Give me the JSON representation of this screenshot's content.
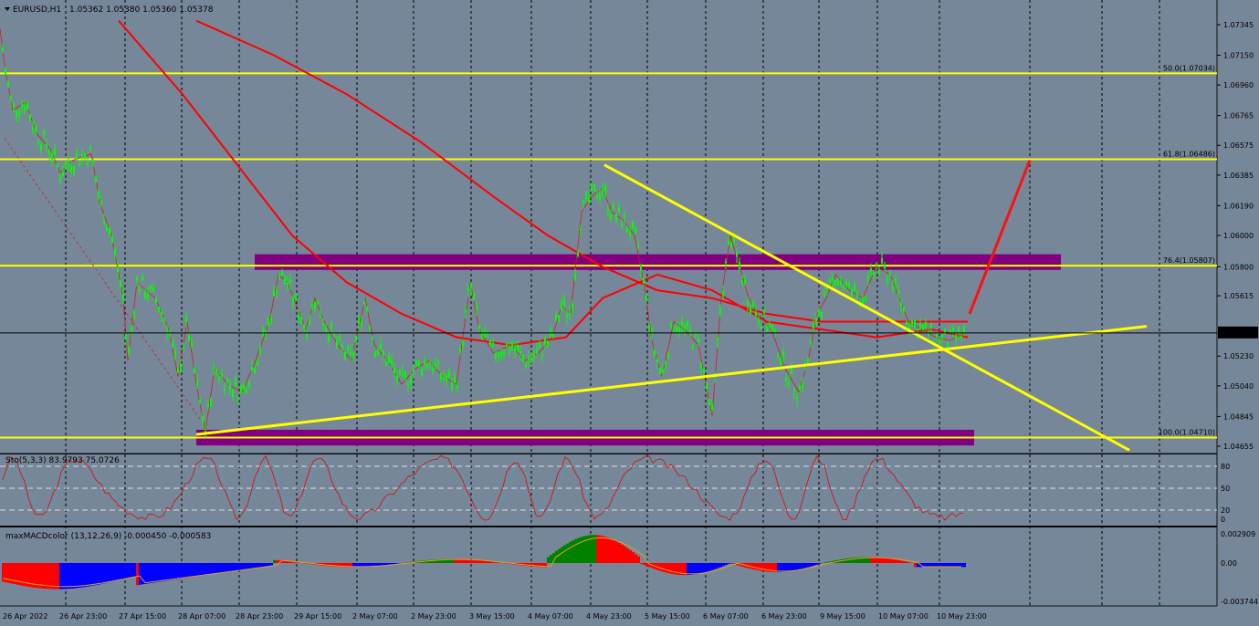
{
  "header": {
    "symbol": "EURUSD,H1",
    "ohlc": "1.05362 1.05380 1.05360 1.05378"
  },
  "price_axis": {
    "labels": [
      "1.07345",
      "1.07150",
      "1.06960",
      "1.06765",
      "1.06575",
      "1.06385",
      "1.06190",
      "1.06000",
      "1.05800",
      "1.05615",
      "1.05420",
      "1.05230",
      "1.05040",
      "1.04845",
      "1.04655"
    ],
    "values": [
      1.07345,
      1.0715,
      1.0696,
      1.06765,
      1.06575,
      1.06385,
      1.0619,
      1.06,
      1.058,
      1.05615,
      1.0542,
      1.0523,
      1.0504,
      1.04845,
      1.04655
    ],
    "current_price": "1.05378"
  },
  "time_axis": {
    "labels": [
      "26 Apr 2022",
      "26 Apr 23:00",
      "27 Apr 15:00",
      "28 Apr 07:00",
      "28 Apr 23:00",
      "29 Apr 15:00",
      "2 May 07:00",
      "2 May 23:00",
      "3 May 15:00",
      "4 May 07:00",
      "4 May 23:00",
      "5 May 15:00",
      "6 May 07:00",
      "6 May 23:00",
      "9 May 15:00",
      "10 May 07:00",
      "10 May 23:00"
    ]
  },
  "fibonacci": [
    {
      "label": "50.0(1.07034)",
      "price": 1.07034
    },
    {
      "label": "61.8(1.06486)",
      "price": 1.06486
    },
    {
      "label": "76.4(1.05807)",
      "price": 1.05807
    },
    {
      "label": "100.0(1.04710)",
      "price": 1.0471
    }
  ],
  "stochastic": {
    "title": "Sto(5,3,3) 83.9793 75.0726",
    "axis_labels": [
      "80",
      "50",
      "20",
      "0"
    ],
    "levels": [
      80,
      50,
      20,
      0
    ]
  },
  "macd": {
    "title": "maxMACDcolor (13,12,26,9) -0.000450 -0.000583",
    "axis_labels": [
      "0.002909",
      "0.00",
      "-0.003744"
    ],
    "values": [
      0.002909,
      0.0,
      -0.003744
    ]
  },
  "colors": {
    "background": "#768799",
    "candles": "#00ff00",
    "fib_lines": "#ffff00",
    "moving_averages": "#ff0000",
    "zones": "#800080",
    "trendlines": "#ffff00",
    "macd_up": "#008000",
    "macd_down": "#ff0000",
    "macd_strong": "#0000ff"
  },
  "chart_data": {
    "type": "candlestick",
    "series_ohlc_path": [
      [
        0,
        1.0732
      ],
      [
        6,
        1.0705
      ],
      [
        14,
        1.068
      ],
      [
        28,
        1.0685
      ],
      [
        40,
        1.0665
      ],
      [
        55,
        1.0655
      ],
      [
        66,
        1.064
      ],
      [
        80,
        1.0648
      ],
      [
        100,
        1.0652
      ],
      [
        110,
        1.062
      ],
      [
        122,
        1.06
      ],
      [
        135,
        1.056
      ],
      [
        140,
        1.052
      ],
      [
        150,
        1.057
      ],
      [
        170,
        1.056
      ],
      [
        185,
        1.054
      ],
      [
        195,
        1.051
      ],
      [
        205,
        1.0545
      ],
      [
        215,
        1.0505
      ],
      [
        225,
        1.0475
      ],
      [
        235,
        1.0515
      ],
      [
        250,
        1.0505
      ],
      [
        265,
        1.05
      ],
      [
        280,
        1.052
      ],
      [
        295,
        1.0545
      ],
      [
        305,
        1.0575
      ],
      [
        315,
        1.057
      ],
      [
        325,
        1.0555
      ],
      [
        335,
        1.054
      ],
      [
        345,
        1.056
      ],
      [
        355,
        1.0545
      ],
      [
        370,
        1.053
      ],
      [
        385,
        1.052
      ],
      [
        400,
        1.056
      ],
      [
        410,
        1.053
      ],
      [
        425,
        1.052
      ],
      [
        440,
        1.0505
      ],
      [
        455,
        1.0515
      ],
      [
        470,
        1.052
      ],
      [
        485,
        1.051
      ],
      [
        500,
        1.0505
      ],
      [
        515,
        1.057
      ],
      [
        525,
        1.054
      ],
      [
        540,
        1.0525
      ],
      [
        560,
        1.053
      ],
      [
        575,
        1.052
      ],
      [
        590,
        1.0525
      ],
      [
        605,
        1.0535
      ],
      [
        615,
        1.0555
      ],
      [
        625,
        1.055
      ],
      [
        637,
        1.0615
      ],
      [
        648,
        1.0625
      ],
      [
        660,
        1.063
      ],
      [
        670,
        1.0615
      ],
      [
        682,
        1.061
      ],
      [
        695,
        1.06
      ],
      [
        705,
        1.057
      ],
      [
        715,
        1.053
      ],
      [
        725,
        1.051
      ],
      [
        738,
        1.0545
      ],
      [
        750,
        1.054
      ],
      [
        765,
        1.053
      ],
      [
        780,
        1.0485
      ],
      [
        790,
        1.056
      ],
      [
        800,
        1.06
      ],
      [
        810,
        1.058
      ],
      [
        820,
        1.056
      ],
      [
        830,
        1.055
      ],
      [
        845,
        1.054
      ],
      [
        860,
        1.0515
      ],
      [
        875,
        1.05
      ],
      [
        885,
        1.052
      ],
      [
        895,
        1.055
      ],
      [
        905,
        1.056
      ],
      [
        915,
        1.0575
      ],
      [
        930,
        1.0565
      ],
      [
        945,
        1.056
      ],
      [
        960,
        1.058
      ],
      [
        975,
        1.0575
      ],
      [
        985,
        1.056
      ],
      [
        995,
        1.0545
      ],
      [
        1010,
        1.054
      ],
      [
        1025,
        1.0535
      ],
      [
        1040,
        1.0533
      ],
      [
        1058,
        1.0538
      ]
    ],
    "moving_averages": [
      {
        "points": [
          [
            130,
            1.0737
          ],
          [
            200,
            1.069
          ],
          [
            260,
            1.0645
          ],
          [
            320,
            1.06
          ],
          [
            380,
            1.057
          ],
          [
            440,
            1.055
          ],
          [
            500,
            1.0535
          ],
          [
            560,
            1.053
          ],
          [
            620,
            1.0535
          ],
          [
            660,
            1.056
          ],
          [
            720,
            1.0575
          ],
          [
            780,
            1.0565
          ],
          [
            840,
            1.0545
          ],
          [
            900,
            1.054
          ],
          [
            960,
            1.0535
          ],
          [
            1020,
            1.054
          ],
          [
            1060,
            1.0535
          ]
        ]
      },
      {
        "points": [
          [
            215,
            1.0737
          ],
          [
            300,
            1.0715
          ],
          [
            380,
            1.069
          ],
          [
            460,
            1.066
          ],
          [
            540,
            1.0625
          ],
          [
            600,
            1.06
          ],
          [
            660,
            1.058
          ],
          [
            720,
            1.0565
          ],
          [
            780,
            1.056
          ],
          [
            840,
            1.055
          ],
          [
            900,
            1.0545
          ],
          [
            960,
            1.0545
          ],
          [
            1010,
            1.0545
          ],
          [
            1060,
            1.0545
          ]
        ]
      }
    ],
    "projection": [
      [
        1062,
        1.055
      ],
      [
        1128,
        1.0648
      ]
    ],
    "trendlines": [
      {
        "points": [
          [
            215,
            1.0473
          ],
          [
            1256,
            1.0542
          ]
        ]
      },
      {
        "points": [
          [
            662,
            1.0645
          ],
          [
            1237,
            1.0463
          ]
        ]
      }
    ],
    "zones": [
      {
        "x": [
          279,
          1162
        ],
        "y": [
          1.0578,
          1.0588
        ]
      },
      {
        "x": [
          215,
          1067
        ],
        "y": [
          1.0466,
          1.0476
        ]
      }
    ],
    "xlabel": "",
    "ylabel": ""
  }
}
